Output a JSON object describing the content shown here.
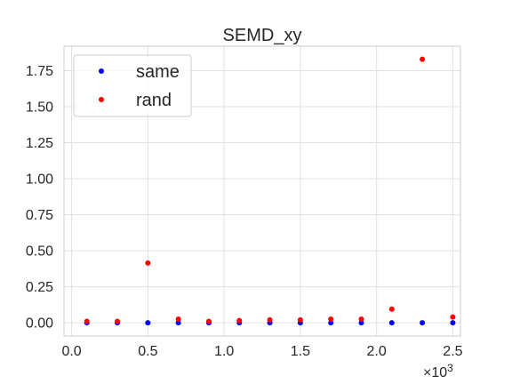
{
  "chart_data": {
    "type": "scatter",
    "title": "SEMD_xy",
    "xlabel": "",
    "ylabel": "",
    "x_multiplier_label": "×10",
    "x_multiplier_exponent": "3",
    "xlim": [
      -0.05,
      2.55
    ],
    "ylim": [
      -0.092,
      1.92
    ],
    "x_ticks": [
      0.0,
      0.5,
      1.0,
      1.5,
      2.0,
      2.5
    ],
    "x_tick_labels": [
      "0.0",
      "0.5",
      "1.0",
      "1.5",
      "2.0",
      "2.5"
    ],
    "y_ticks": [
      0.0,
      0.25,
      0.5,
      0.75,
      1.0,
      1.25,
      1.5,
      1.75
    ],
    "y_tick_labels": [
      "0.00",
      "0.25",
      "0.50",
      "0.75",
      "1.00",
      "1.25",
      "1.50",
      "1.75"
    ],
    "grid": true,
    "legend_position": "top-left",
    "series": [
      {
        "name": "same",
        "color": "#0000ff",
        "x": [
          0.1,
          0.3,
          0.5,
          0.7,
          0.9,
          1.1,
          1.3,
          1.5,
          1.7,
          1.9,
          2.1,
          2.3,
          2.5
        ],
        "y": [
          0.0,
          0.0,
          0.0,
          0.0,
          0.0,
          0.0,
          0.0,
          0.0,
          0.0,
          0.0,
          0.0,
          0.0,
          0.0
        ]
      },
      {
        "name": "rand",
        "color": "#ff0000",
        "x": [
          0.1,
          0.3,
          0.5,
          0.7,
          0.9,
          1.1,
          1.3,
          1.5,
          1.7,
          1.9,
          2.1,
          2.3,
          2.5
        ],
        "y": [
          0.01,
          0.01,
          0.415,
          0.025,
          0.01,
          0.015,
          0.02,
          0.02,
          0.025,
          0.025,
          0.095,
          1.83,
          0.04
        ]
      }
    ]
  }
}
